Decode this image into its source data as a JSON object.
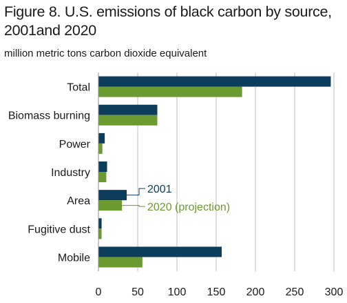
{
  "title_line1": "Figure 8. U.S.  emissions of black carbon by source,",
  "title_line2": "2001and 2020",
  "subtitle": "million metric tons carbon dioxide equivalent",
  "chart_data": {
    "type": "bar",
    "orientation": "horizontal",
    "categories": [
      "Total",
      "Biomass burning",
      "Power",
      "Industry",
      "Area",
      "Fugitive dust",
      "Mobile"
    ],
    "series": [
      {
        "name": "2001",
        "color": "#0d3d5c",
        "values": [
          296,
          75,
          8,
          11,
          36,
          4,
          157
        ]
      },
      {
        "name": "2020 (projection)",
        "color": "#6b9a2f",
        "values": [
          183,
          75,
          5,
          10,
          30,
          4,
          56
        ]
      }
    ],
    "xlim": [
      0,
      300
    ],
    "xticks": [
      0,
      50,
      100,
      150,
      200,
      250,
      300
    ],
    "xlabel": "",
    "ylabel": "",
    "grid": "vertical",
    "legend": "inline callouts next to Area bars"
  }
}
